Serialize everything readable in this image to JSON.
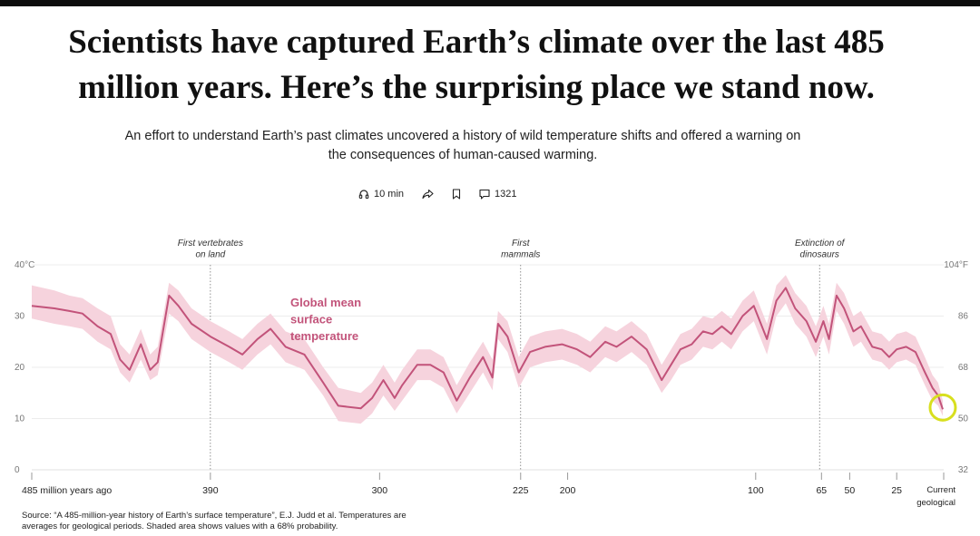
{
  "headline": {
    "line1": "Scientists have captured Earth’s climate over the last 485",
    "line2": "million years. Here’s the surprising place we stand now."
  },
  "dek": {
    "line1": "An effort to understand Earth’s past climates uncovered a history of wild temperature shifts and offered a warning on",
    "line2": "the consequences of human-caused warming."
  },
  "toolbar": {
    "listen_label": "10 min",
    "comments_count": "1321",
    "icons": [
      "headphones-icon",
      "share-icon",
      "bookmark-icon",
      "comment-icon"
    ]
  },
  "chart_data": {
    "type": "line",
    "series_label": [
      "Global mean",
      "surface",
      "temperature"
    ],
    "line_color": "#c2537a",
    "band_color": "#f6d3dd",
    "x_axis_reversed": true,
    "xlim": [
      485,
      0
    ],
    "ylim": [
      0,
      40
    ],
    "grid": true,
    "x_ticks": [
      {
        "value": 485,
        "label": "485 million years ago"
      },
      {
        "value": 390,
        "label": "390"
      },
      {
        "value": 300,
        "label": "300"
      },
      {
        "value": 225,
        "label": "225"
      },
      {
        "value": 200,
        "label": "200"
      },
      {
        "value": 100,
        "label": "100"
      },
      {
        "value": 65,
        "label": "65"
      },
      {
        "value": 50,
        "label": "50"
      },
      {
        "value": 25,
        "label": "25"
      },
      {
        "value": 0,
        "label": "Current geological stage"
      }
    ],
    "y_ticks_left": [
      {
        "value": 0,
        "label": "0"
      },
      {
        "value": 10,
        "label": "10"
      },
      {
        "value": 20,
        "label": "20"
      },
      {
        "value": 30,
        "label": "30"
      },
      {
        "value": 40,
        "label": "40°C"
      }
    ],
    "y_ticks_right": [
      {
        "value": 0,
        "label": "32"
      },
      {
        "value": 10,
        "label": "50"
      },
      {
        "value": 20,
        "label": "68"
      },
      {
        "value": 30,
        "label": "86"
      },
      {
        "value": 40,
        "label": "104°F"
      }
    ],
    "annotations": [
      {
        "x": 390,
        "label": [
          "First vertebrates",
          "on land"
        ]
      },
      {
        "x": 225,
        "label": [
          "First",
          "mammals"
        ]
      },
      {
        "x": 66,
        "label": [
          "Extinction of",
          "dinosaurs"
        ]
      }
    ],
    "highlight": {
      "x": 0.5,
      "y": 11.8,
      "color": "#d8df1e"
    },
    "points": [
      {
        "x": 485,
        "y": 32.0,
        "lo": 29.5,
        "hi": 36.0
      },
      {
        "x": 473,
        "y": 31.5,
        "lo": 28.5,
        "hi": 35.0
      },
      {
        "x": 465,
        "y": 31.0,
        "lo": 28.0,
        "hi": 34.0
      },
      {
        "x": 458,
        "y": 30.5,
        "lo": 27.5,
        "hi": 33.5
      },
      {
        "x": 450,
        "y": 28.0,
        "lo": 25.0,
        "hi": 31.5
      },
      {
        "x": 443,
        "y": 26.5,
        "lo": 23.5,
        "hi": 30.0
      },
      {
        "x": 438,
        "y": 21.5,
        "lo": 19.0,
        "hi": 24.5
      },
      {
        "x": 433,
        "y": 19.5,
        "lo": 17.0,
        "hi": 22.5
      },
      {
        "x": 427,
        "y": 24.5,
        "lo": 21.5,
        "hi": 27.5
      },
      {
        "x": 422,
        "y": 19.5,
        "lo": 17.5,
        "hi": 22.5
      },
      {
        "x": 418,
        "y": 21.0,
        "lo": 18.5,
        "hi": 24.0
      },
      {
        "x": 412,
        "y": 34.0,
        "lo": 30.5,
        "hi": 36.5
      },
      {
        "x": 407,
        "y": 32.0,
        "lo": 29.0,
        "hi": 35.0
      },
      {
        "x": 400,
        "y": 28.5,
        "lo": 25.5,
        "hi": 31.5
      },
      {
        "x": 390,
        "y": 26.0,
        "lo": 23.0,
        "hi": 29.0
      },
      {
        "x": 380,
        "y": 24.0,
        "lo": 21.0,
        "hi": 27.0
      },
      {
        "x": 373,
        "y": 22.5,
        "lo": 19.5,
        "hi": 25.5
      },
      {
        "x": 365,
        "y": 25.5,
        "lo": 22.5,
        "hi": 28.5
      },
      {
        "x": 358,
        "y": 27.5,
        "lo": 24.5,
        "hi": 30.5
      },
      {
        "x": 350,
        "y": 24.0,
        "lo": 21.0,
        "hi": 27.0
      },
      {
        "x": 340,
        "y": 22.5,
        "lo": 19.5,
        "hi": 25.5
      },
      {
        "x": 330,
        "y": 17.0,
        "lo": 14.5,
        "hi": 20.0
      },
      {
        "x": 322,
        "y": 12.5,
        "lo": 9.5,
        "hi": 16.0
      },
      {
        "x": 310,
        "y": 12.0,
        "lo": 9.0,
        "hi": 15.0
      },
      {
        "x": 304,
        "y": 14.0,
        "lo": 11.0,
        "hi": 17.0
      },
      {
        "x": 298,
        "y": 17.5,
        "lo": 14.5,
        "hi": 20.5
      },
      {
        "x": 292,
        "y": 14.0,
        "lo": 11.5,
        "hi": 17.0
      },
      {
        "x": 288,
        "y": 16.5,
        "lo": 13.5,
        "hi": 19.5
      },
      {
        "x": 280,
        "y": 20.5,
        "lo": 17.5,
        "hi": 23.5
      },
      {
        "x": 273,
        "y": 20.5,
        "lo": 17.5,
        "hi": 23.5
      },
      {
        "x": 266,
        "y": 19.0,
        "lo": 16.0,
        "hi": 22.0
      },
      {
        "x": 259,
        "y": 13.5,
        "lo": 11.0,
        "hi": 16.5
      },
      {
        "x": 252,
        "y": 18.0,
        "lo": 15.0,
        "hi": 21.0
      },
      {
        "x": 245,
        "y": 22.0,
        "lo": 19.0,
        "hi": 25.0
      },
      {
        "x": 240,
        "y": 18.0,
        "lo": 15.5,
        "hi": 21.5
      },
      {
        "x": 237,
        "y": 28.5,
        "lo": 25.5,
        "hi": 31.0
      },
      {
        "x": 232,
        "y": 26.0,
        "lo": 23.0,
        "hi": 29.0
      },
      {
        "x": 226,
        "y": 19.0,
        "lo": 16.0,
        "hi": 22.0
      },
      {
        "x": 220,
        "y": 23.0,
        "lo": 20.0,
        "hi": 26.0
      },
      {
        "x": 212,
        "y": 24.0,
        "lo": 21.0,
        "hi": 27.0
      },
      {
        "x": 203,
        "y": 24.5,
        "lo": 21.5,
        "hi": 27.5
      },
      {
        "x": 195,
        "y": 23.5,
        "lo": 20.5,
        "hi": 26.5
      },
      {
        "x": 188,
        "y": 22.0,
        "lo": 19.0,
        "hi": 25.0
      },
      {
        "x": 180,
        "y": 25.0,
        "lo": 22.0,
        "hi": 28.0
      },
      {
        "x": 174,
        "y": 24.0,
        "lo": 21.0,
        "hi": 27.0
      },
      {
        "x": 166,
        "y": 26.0,
        "lo": 23.0,
        "hi": 29.0
      },
      {
        "x": 158,
        "y": 23.5,
        "lo": 20.5,
        "hi": 26.5
      },
      {
        "x": 150,
        "y": 17.5,
        "lo": 15.0,
        "hi": 20.5
      },
      {
        "x": 145,
        "y": 20.5,
        "lo": 17.5,
        "hi": 23.5
      },
      {
        "x": 140,
        "y": 23.5,
        "lo": 20.5,
        "hi": 26.5
      },
      {
        "x": 134,
        "y": 24.5,
        "lo": 21.5,
        "hi": 27.5
      },
      {
        "x": 128,
        "y": 27.0,
        "lo": 24.0,
        "hi": 30.0
      },
      {
        "x": 123,
        "y": 26.5,
        "lo": 23.5,
        "hi": 29.5
      },
      {
        "x": 118,
        "y": 28.0,
        "lo": 25.0,
        "hi": 31.0
      },
      {
        "x": 113,
        "y": 26.5,
        "lo": 23.5,
        "hi": 29.5
      },
      {
        "x": 107,
        "y": 30.0,
        "lo": 27.0,
        "hi": 33.0
      },
      {
        "x": 101,
        "y": 32.0,
        "lo": 29.0,
        "hi": 35.0
      },
      {
        "x": 94,
        "y": 25.5,
        "lo": 22.5,
        "hi": 28.5
      },
      {
        "x": 89,
        "y": 33.0,
        "lo": 30.0,
        "hi": 36.0
      },
      {
        "x": 84,
        "y": 35.5,
        "lo": 32.5,
        "hi": 38.0
      },
      {
        "x": 79,
        "y": 31.5,
        "lo": 28.5,
        "hi": 34.5
      },
      {
        "x": 73,
        "y": 29.0,
        "lo": 26.0,
        "hi": 32.0
      },
      {
        "x": 68,
        "y": 25.0,
        "lo": 22.0,
        "hi": 28.0
      },
      {
        "x": 64,
        "y": 29.0,
        "lo": 26.0,
        "hi": 32.0
      },
      {
        "x": 61,
        "y": 25.5,
        "lo": 22.5,
        "hi": 28.5
      },
      {
        "x": 57,
        "y": 34.0,
        "lo": 31.0,
        "hi": 36.5
      },
      {
        "x": 53,
        "y": 31.5,
        "lo": 28.5,
        "hi": 34.5
      },
      {
        "x": 48,
        "y": 27.0,
        "lo": 24.0,
        "hi": 30.0
      },
      {
        "x": 44,
        "y": 28.0,
        "lo": 25.0,
        "hi": 31.0
      },
      {
        "x": 38,
        "y": 24.0,
        "lo": 21.5,
        "hi": 27.0
      },
      {
        "x": 33,
        "y": 23.5,
        "lo": 21.0,
        "hi": 26.5
      },
      {
        "x": 29,
        "y": 22.0,
        "lo": 19.5,
        "hi": 25.0
      },
      {
        "x": 25,
        "y": 23.5,
        "lo": 21.0,
        "hi": 26.5
      },
      {
        "x": 20,
        "y": 24.0,
        "lo": 21.5,
        "hi": 27.0
      },
      {
        "x": 15,
        "y": 23.0,
        "lo": 20.5,
        "hi": 26.0
      },
      {
        "x": 10,
        "y": 19.0,
        "lo": 16.5,
        "hi": 22.0
      },
      {
        "x": 6,
        "y": 16.0,
        "lo": 13.5,
        "hi": 18.5
      },
      {
        "x": 3,
        "y": 14.5,
        "lo": 12.5,
        "hi": 17.0
      },
      {
        "x": 0.5,
        "y": 11.8,
        "lo": 10.5,
        "hi": 13.5
      }
    ]
  },
  "source": {
    "line1": "Source: “A 485-million-year history of Earth’s surface temperature”, E.J. Judd et al. Temperatures are",
    "line2": "averages for geological periods. Shaded area shows values with a 68% probability."
  }
}
